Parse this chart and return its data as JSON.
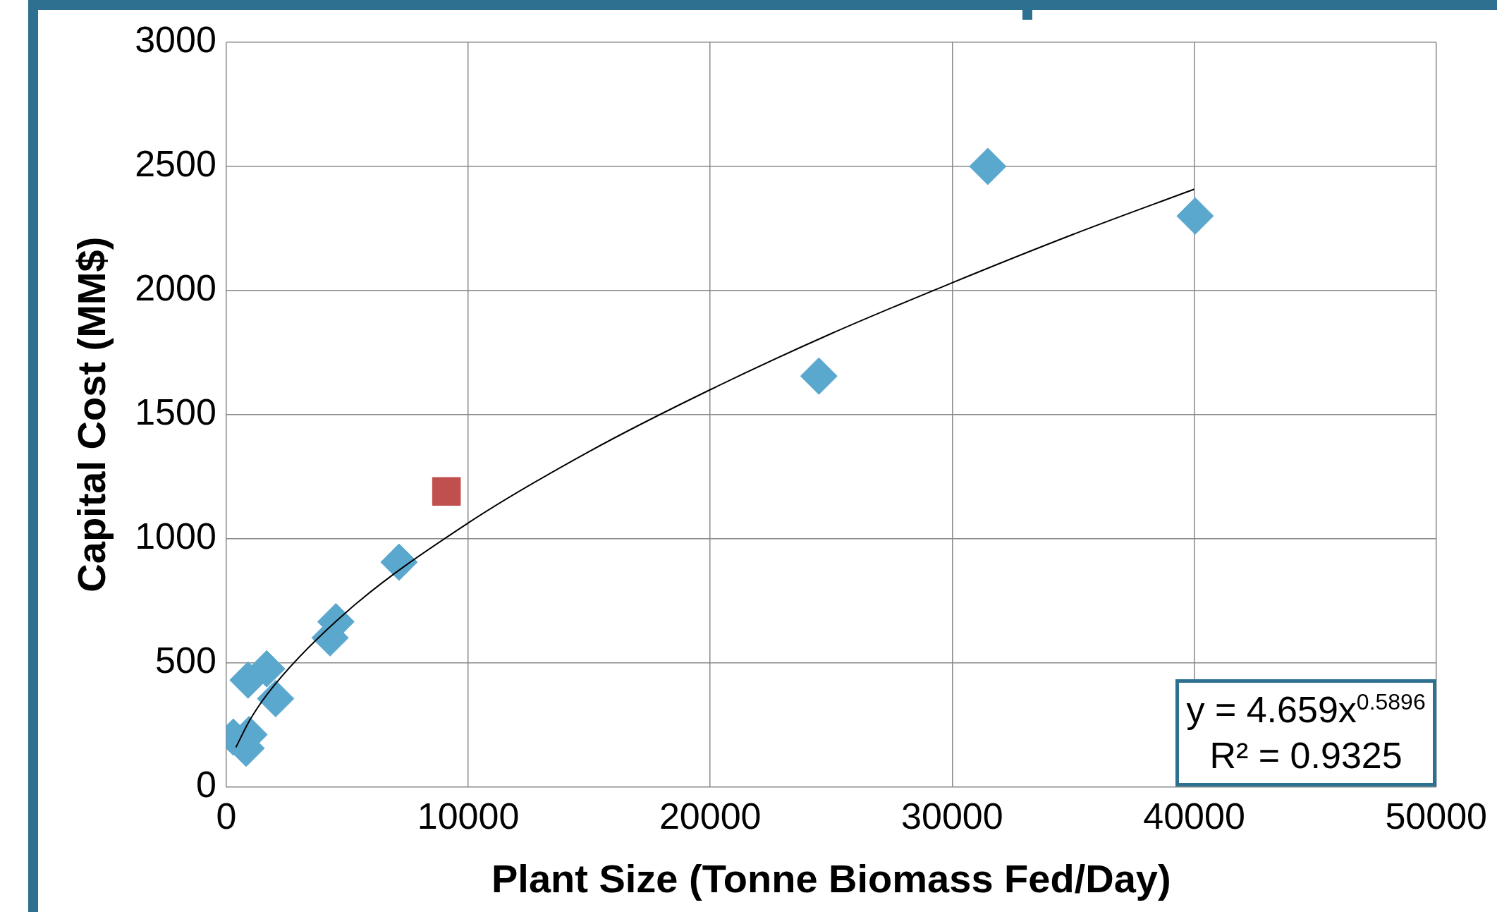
{
  "chart_data": {
    "type": "scatter",
    "xlabel": "Plant Size (Tonne Biomass Fed/Day)",
    "ylabel": "Capital Cost (MM$)",
    "xlim": [
      0,
      50000
    ],
    "xticks": [
      0,
      10000,
      20000,
      30000,
      40000,
      50000
    ],
    "ylim": [
      0,
      3000
    ],
    "yticks": [
      0,
      500,
      1000,
      1500,
      2000,
      2500,
      3000
    ],
    "grid": true,
    "legend": false,
    "series": [
      {
        "marker": "diamond",
        "color": "#5ba8cf",
        "x": [
          290,
          940,
          820,
          900,
          1670,
          2040,
          4290,
          4530,
          7140,
          24490,
          31470,
          40040
        ],
        "values": [
          200,
          210,
          155,
          430,
          475,
          355,
          600,
          665,
          905,
          1655,
          2500,
          2300
        ]
      },
      {
        "marker": "square",
        "color": "#c0504d",
        "x": [
          9100
        ],
        "values": [
          1190
        ]
      },
      {
        "type": "line",
        "marker": "none",
        "color": "#000000",
        "x": [
          400,
          1000,
          2000,
          5000,
          10000,
          15000,
          20000,
          25000,
          30000,
          35000,
          40000
        ],
        "values": [
          159,
          273,
          411,
          707,
          1063,
          1351,
          1600,
          1826,
          2031,
          2226,
          2408
        ]
      }
    ],
    "annotations": [
      "y = 4.659x$^{0.5896}$",
      "R² = 0.9325"
    ]
  }
}
